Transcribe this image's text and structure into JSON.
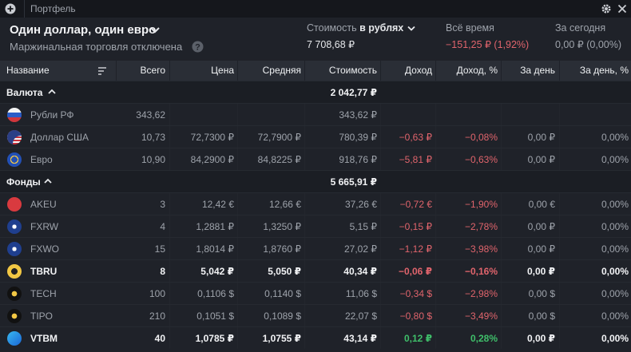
{
  "toolbar": {
    "title": "Портфель"
  },
  "header": {
    "portfolio_name": "Один доллар, один евро",
    "margin_note": "Маржинальная торговля отключена",
    "value": {
      "label": "Стоимость",
      "label_bold": "в рублях",
      "amount": "7 708,68 ₽"
    },
    "all_time": {
      "label": "Всё время",
      "amount": "−151,25 ₽ (1,92%)"
    },
    "today": {
      "label": "За сегодня",
      "amount": "0,00 ₽ (0,00%)"
    }
  },
  "table": {
    "columns": [
      "Название",
      "Всего",
      "Цена",
      "Средняя",
      "Стоимость",
      "Доход",
      "Доход, %",
      "За день",
      "За день, %"
    ],
    "groups": [
      {
        "name": "Валюта",
        "total": "2 042,77 ₽",
        "rows": [
          {
            "name": "Рубли РФ",
            "qty": "343,62",
            "value": "343,62 ₽"
          },
          {
            "name": "Доллар США",
            "qty": "10,73",
            "price": "72,7300 ₽",
            "avg": "72,7900 ₽",
            "value": "780,39 ₽",
            "income": "−0,63 ₽",
            "income_pct": "−0,08%",
            "day": "0,00 ₽",
            "day_pct": "0,00%"
          },
          {
            "name": "Евро",
            "qty": "10,90",
            "price": "84,2900 ₽",
            "avg": "84,8225 ₽",
            "value": "918,76 ₽",
            "income": "−5,81 ₽",
            "income_pct": "−0,63%",
            "day": "0,00 ₽",
            "day_pct": "0,00%"
          }
        ]
      },
      {
        "name": "Фонды",
        "total": "5 665,91 ₽",
        "rows": [
          {
            "name": "AKEU",
            "qty": "3",
            "price": "12,42 €",
            "avg": "12,66 €",
            "value": "37,26 €",
            "income": "−0,72 €",
            "income_pct": "−1,90%",
            "day": "0,00 €",
            "day_pct": "0,00%"
          },
          {
            "name": "FXRW",
            "qty": "4",
            "price": "1,2881 ₽",
            "avg": "1,3250 ₽",
            "value": "5,15 ₽",
            "income": "−0,15 ₽",
            "income_pct": "−2,78%",
            "day": "0,00 ₽",
            "day_pct": "0,00%"
          },
          {
            "name": "FXWO",
            "qty": "15",
            "price": "1,8014 ₽",
            "avg": "1,8760 ₽",
            "value": "27,02 ₽",
            "income": "−1,12 ₽",
            "income_pct": "−3,98%",
            "day": "0,00 ₽",
            "day_pct": "0,00%"
          },
          {
            "name": "TBRU",
            "qty": "8",
            "price": "5,042 ₽",
            "avg": "5,050 ₽",
            "value": "40,34 ₽",
            "income": "−0,06 ₽",
            "income_pct": "−0,16%",
            "day": "0,00 ₽",
            "day_pct": "0,00%",
            "emphasis": true
          },
          {
            "name": "TECH",
            "qty": "100",
            "price": "0,1106 $",
            "avg": "0,1140 $",
            "value": "11,06 $",
            "income": "−0,34 $",
            "income_pct": "−2,98%",
            "day": "0,00 $",
            "day_pct": "0,00%"
          },
          {
            "name": "TIPO",
            "qty": "210",
            "price": "0,1051 $",
            "avg": "0,1089 $",
            "value": "22,07 $",
            "income": "−0,80 $",
            "income_pct": "−3,49%",
            "day": "0,00 $",
            "day_pct": "0,00%"
          },
          {
            "name": "VTBM",
            "qty": "40",
            "price": "1,0785 ₽",
            "avg": "1,0755 ₽",
            "value": "43,14 ₽",
            "income": "0,12 ₽",
            "income_pct": "0,28%",
            "day": "0,00 ₽",
            "day_pct": "0,00%",
            "emphasis": true
          }
        ]
      }
    ]
  }
}
